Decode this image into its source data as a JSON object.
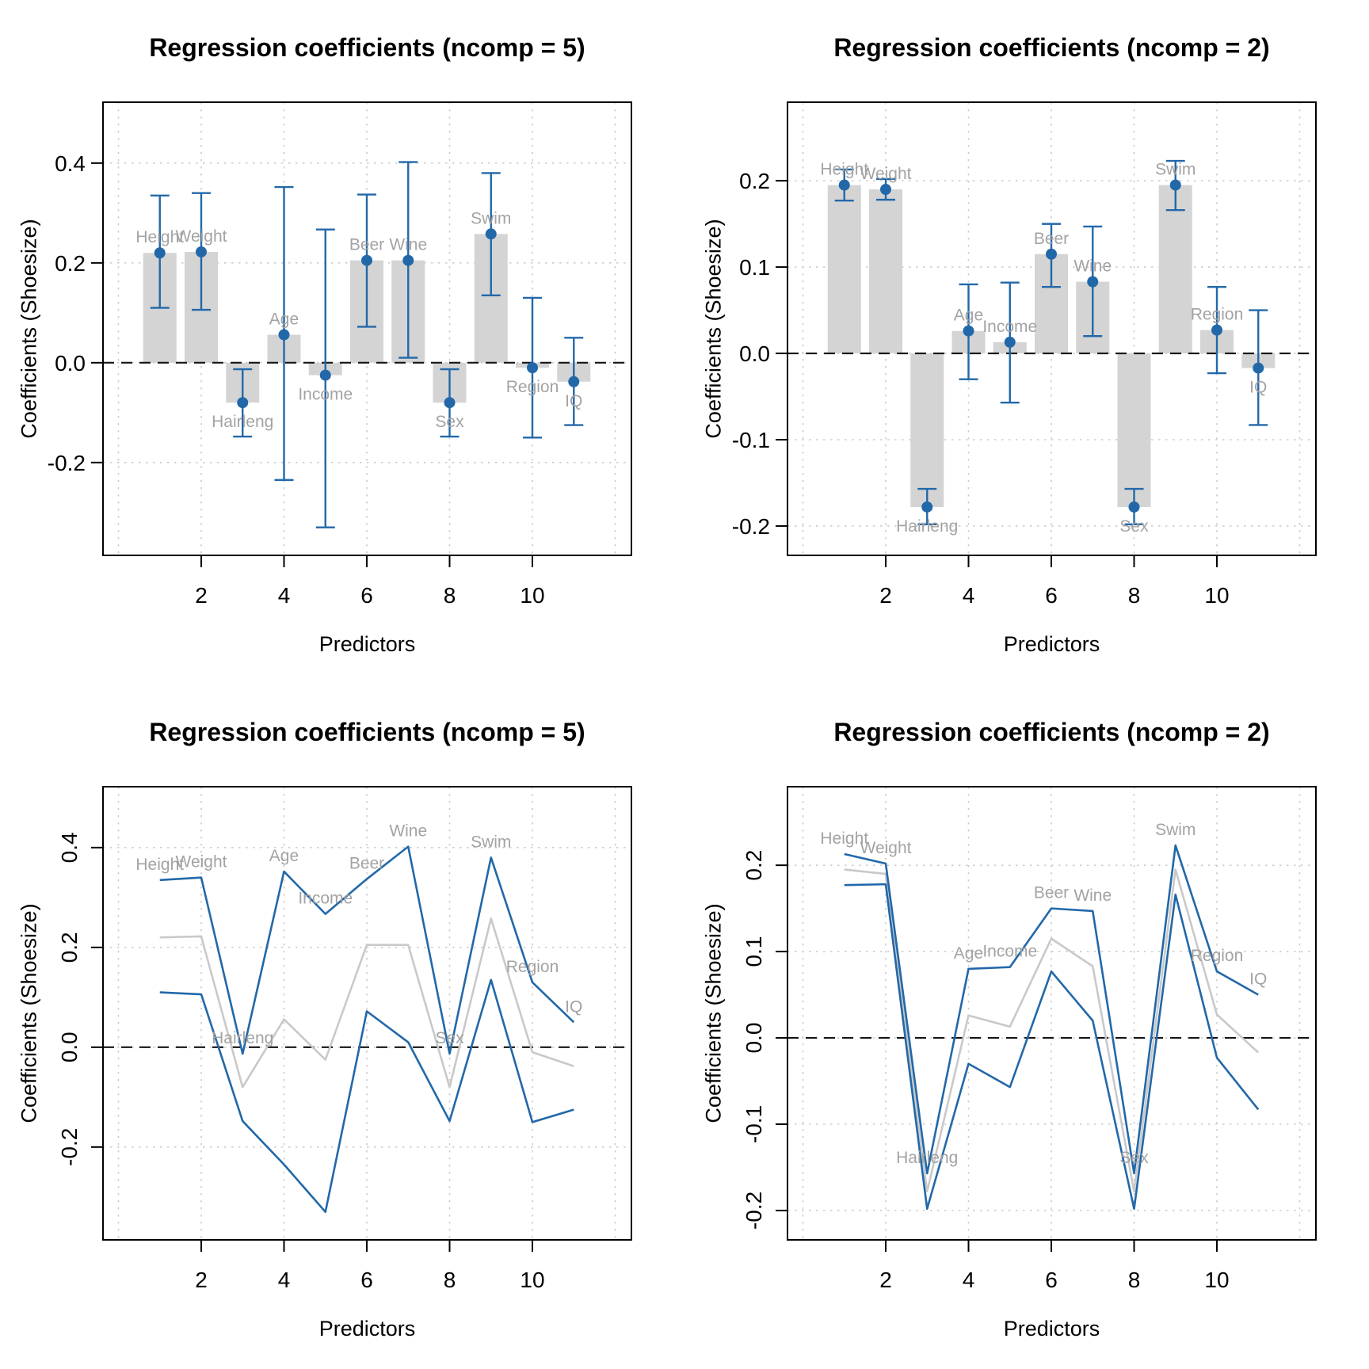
{
  "figure": {
    "colors": {
      "point_blue": "#2268a9",
      "bar_gray": "#d4d4d4",
      "coef_line_gray": "#c9c9c9",
      "predictor_label_gray": "#a3a3a3",
      "grid_gray": "#cdcdcd",
      "axis_black": "#000000",
      "zero_line_black": "#151515",
      "background": "#ffffff"
    }
  },
  "chart_data": [
    {
      "id": "top-left",
      "type": "bar",
      "title": "Regression coefficients (ncomp = 5)",
      "xlabel": "Predictors",
      "ylabel": "Coefficients (Shoesize)",
      "categories": [
        "Height",
        "Weight",
        "Hairleng",
        "Age",
        "Income",
        "Beer",
        "Wine",
        "Sex",
        "Swim",
        "Region",
        "IQ"
      ],
      "x": [
        1,
        2,
        3,
        4,
        5,
        6,
        7,
        8,
        9,
        10,
        11
      ],
      "series": [
        {
          "name": "coefficient",
          "values": [
            0.22,
            0.222,
            -0.08,
            0.056,
            -0.025,
            0.205,
            0.205,
            -0.08,
            0.258,
            -0.01,
            -0.038
          ]
        },
        {
          "name": "ci_lower",
          "values": [
            0.11,
            0.106,
            -0.148,
            -0.235,
            -0.33,
            0.072,
            0.01,
            -0.148,
            0.135,
            -0.15,
            -0.125
          ]
        },
        {
          "name": "ci_upper",
          "values": [
            0.335,
            0.34,
            -0.013,
            0.352,
            0.267,
            0.337,
            0.402,
            -0.013,
            0.38,
            0.13,
            0.05
          ]
        }
      ],
      "x_ticks": [
        2,
        4,
        6,
        8,
        10
      ],
      "x_tick_labels": [
        "2",
        "4",
        "6",
        "8",
        "10"
      ],
      "y_ticks": [
        -0.2,
        0.0,
        0.2,
        0.4
      ],
      "y_tick_labels": [
        "-0.2",
        "0.0",
        "0.2",
        "0.4"
      ],
      "x_grid": [
        0,
        2,
        4,
        6,
        8,
        10,
        12
      ],
      "xlim": [
        -0.373,
        12.392
      ],
      "ylim": [
        -0.386,
        0.522
      ],
      "y_ticks_rotated": false,
      "grid": true,
      "zero_line": true,
      "legend": "none"
    },
    {
      "id": "top-right",
      "type": "bar",
      "title": "Regression coefficients (ncomp = 2)",
      "xlabel": "Predictors",
      "ylabel": "Coefficients (Shoesize)",
      "categories": [
        "Height",
        "Weight",
        "Hairleng",
        "Age",
        "Income",
        "Beer",
        "Wine",
        "Sex",
        "Swim",
        "Region",
        "IQ"
      ],
      "x": [
        1,
        2,
        3,
        4,
        5,
        6,
        7,
        8,
        9,
        10,
        11
      ],
      "series": [
        {
          "name": "coefficient",
          "values": [
            0.195,
            0.19,
            -0.178,
            0.026,
            0.013,
            0.115,
            0.083,
            -0.178,
            0.195,
            0.027,
            -0.017
          ]
        },
        {
          "name": "ci_lower",
          "values": [
            0.177,
            0.178,
            -0.198,
            -0.03,
            -0.057,
            0.077,
            0.02,
            -0.198,
            0.166,
            -0.023,
            -0.083
          ]
        },
        {
          "name": "ci_upper",
          "values": [
            0.213,
            0.202,
            -0.157,
            0.08,
            0.082,
            0.15,
            0.147,
            -0.157,
            0.223,
            0.077,
            0.05
          ]
        }
      ],
      "x_ticks": [
        2,
        4,
        6,
        8,
        10
      ],
      "x_tick_labels": [
        "2",
        "4",
        "6",
        "8",
        "10"
      ],
      "y_ticks": [
        -0.2,
        -0.1,
        0.0,
        0.1,
        0.2
      ],
      "y_tick_labels": [
        "-0.2",
        "-0.1",
        "0.0",
        "0.1",
        "0.2"
      ],
      "x_grid": [
        0,
        2,
        4,
        6,
        8,
        10,
        12
      ],
      "xlim": [
        -0.373,
        12.392
      ],
      "ylim": [
        -0.234,
        0.291
      ],
      "y_ticks_rotated": false,
      "grid": true,
      "zero_line": true,
      "legend": "none"
    },
    {
      "id": "bottom-left",
      "type": "line",
      "title": "Regression coefficients (ncomp = 5)",
      "xlabel": "Predictors",
      "ylabel": "Coefficients (Shoesize)",
      "categories": [
        "Height",
        "Weight",
        "Hairleng",
        "Age",
        "Income",
        "Beer",
        "Wine",
        "Sex",
        "Swim",
        "Region",
        "IQ"
      ],
      "x": [
        1,
        2,
        3,
        4,
        5,
        6,
        7,
        8,
        9,
        10,
        11
      ],
      "series": [
        {
          "name": "coefficient",
          "values": [
            0.22,
            0.222,
            -0.08,
            0.056,
            -0.025,
            0.205,
            0.205,
            -0.08,
            0.258,
            -0.01,
            -0.038
          ]
        },
        {
          "name": "ci_lower",
          "values": [
            0.11,
            0.106,
            -0.148,
            -0.235,
            -0.33,
            0.072,
            0.01,
            -0.148,
            0.135,
            -0.15,
            -0.125
          ]
        },
        {
          "name": "ci_upper",
          "values": [
            0.335,
            0.34,
            -0.013,
            0.352,
            0.267,
            0.337,
            0.402,
            -0.013,
            0.38,
            0.13,
            0.05
          ]
        }
      ],
      "x_ticks": [
        2,
        4,
        6,
        8,
        10
      ],
      "x_tick_labels": [
        "2",
        "4",
        "6",
        "8",
        "10"
      ],
      "y_ticks": [
        -0.2,
        0.0,
        0.2,
        0.4
      ],
      "y_tick_labels": [
        "-0.2",
        "0.0",
        "0.2",
        "0.4"
      ],
      "x_grid": [
        0,
        2,
        4,
        6,
        8,
        10,
        12
      ],
      "xlim": [
        -0.373,
        12.392
      ],
      "ylim": [
        -0.386,
        0.522
      ],
      "y_ticks_rotated": true,
      "grid": true,
      "zero_line": true,
      "legend": "none"
    },
    {
      "id": "bottom-right",
      "type": "line",
      "title": "Regression coefficients (ncomp = 2)",
      "xlabel": "Predictors",
      "ylabel": "Coefficients (Shoesize)",
      "categories": [
        "Height",
        "Weight",
        "Hairleng",
        "Age",
        "Income",
        "Beer",
        "Wine",
        "Sex",
        "Swim",
        "Region",
        "IQ"
      ],
      "x": [
        1,
        2,
        3,
        4,
        5,
        6,
        7,
        8,
        9,
        10,
        11
      ],
      "series": [
        {
          "name": "coefficient",
          "values": [
            0.195,
            0.19,
            -0.178,
            0.026,
            0.013,
            0.115,
            0.083,
            -0.178,
            0.195,
            0.027,
            -0.017
          ]
        },
        {
          "name": "ci_lower",
          "values": [
            0.177,
            0.178,
            -0.198,
            -0.03,
            -0.057,
            0.077,
            0.02,
            -0.198,
            0.166,
            -0.023,
            -0.083
          ]
        },
        {
          "name": "ci_upper",
          "values": [
            0.213,
            0.202,
            -0.157,
            0.08,
            0.082,
            0.15,
            0.147,
            -0.157,
            0.223,
            0.077,
            0.05
          ]
        }
      ],
      "x_ticks": [
        2,
        4,
        6,
        8,
        10
      ],
      "x_tick_labels": [
        "2",
        "4",
        "6",
        "8",
        "10"
      ],
      "y_ticks": [
        -0.2,
        -0.1,
        0.0,
        0.1,
        0.2
      ],
      "y_tick_labels": [
        "-0.2",
        "-0.1",
        "0.0",
        "0.1",
        "0.2"
      ],
      "x_grid": [
        0,
        2,
        4,
        6,
        8,
        10,
        12
      ],
      "xlim": [
        -0.373,
        12.392
      ],
      "ylim": [
        -0.234,
        0.291
      ],
      "y_ticks_rotated": true,
      "grid": true,
      "zero_line": true,
      "legend": "none"
    }
  ]
}
